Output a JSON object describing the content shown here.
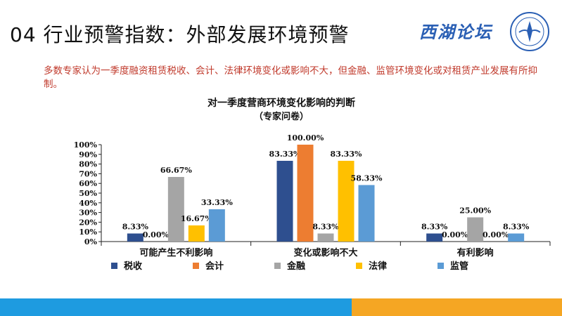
{
  "slide": {
    "title": "04 行业预警指数：外部发展环境预警",
    "logo_text": "西湖论坛",
    "summary": "多数专家认为一季度融资租赁税收、会计、法律环境变化或影响不大，但金融、监管环境变化或对租赁产业发展有所抑制。"
  },
  "colors": {
    "summary_text": "#c0392b",
    "footer_left": "#1e9be0",
    "footer_right": "#f5a623",
    "logo": "#2a5fb4"
  },
  "chart_data": {
    "type": "bar",
    "title": "对一季度营商环境变化影响的判断",
    "subtitle": "（专家问卷）",
    "categories": [
      "可能产生不利影响",
      "变化或影响不大",
      "有利影响"
    ],
    "series": [
      {
        "name": "税收",
        "color": "#2e4f8f",
        "values": [
          8.33,
          83.33,
          8.33
        ],
        "labels": [
          "8.33%",
          "83.33%",
          "8.33%"
        ]
      },
      {
        "name": "会计",
        "color": "#ed7d31",
        "values": [
          0,
          100,
          0
        ],
        "labels": [
          "0.00%",
          "100.00%",
          "0.00%"
        ]
      },
      {
        "name": "金融",
        "color": "#a5a5a5",
        "values": [
          66.67,
          8.33,
          25
        ],
        "labels": [
          "66.67%",
          "8.33%",
          "25.00%"
        ]
      },
      {
        "name": "法律",
        "color": "#ffc000",
        "values": [
          16.67,
          83.33,
          0
        ],
        "labels": [
          "16.67%",
          "83.33%",
          "0.00%"
        ]
      },
      {
        "name": "监管",
        "color": "#5b9bd5",
        "values": [
          33.33,
          58.33,
          8.33
        ],
        "labels": [
          "33.33%",
          "58.33%",
          "8.33%"
        ]
      }
    ],
    "y_ticks": [
      "0%",
      "10%",
      "20%",
      "30%",
      "40%",
      "50%",
      "60%",
      "70%",
      "80%",
      "90%",
      "100%"
    ],
    "ylim": [
      0,
      100
    ],
    "grid": false,
    "legend_position": "bottom"
  }
}
